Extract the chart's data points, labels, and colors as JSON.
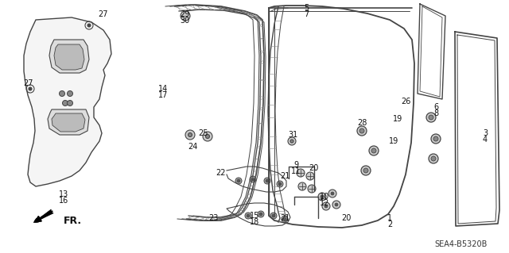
{
  "background_color": "#ffffff",
  "fig_width": 6.4,
  "fig_height": 3.19,
  "dpi": 100,
  "diagram_code": "SEA4-B5320B",
  "fr_label": "FR.",
  "lc": "#444444",
  "tc": "#111111",
  "lfs": 7.0
}
